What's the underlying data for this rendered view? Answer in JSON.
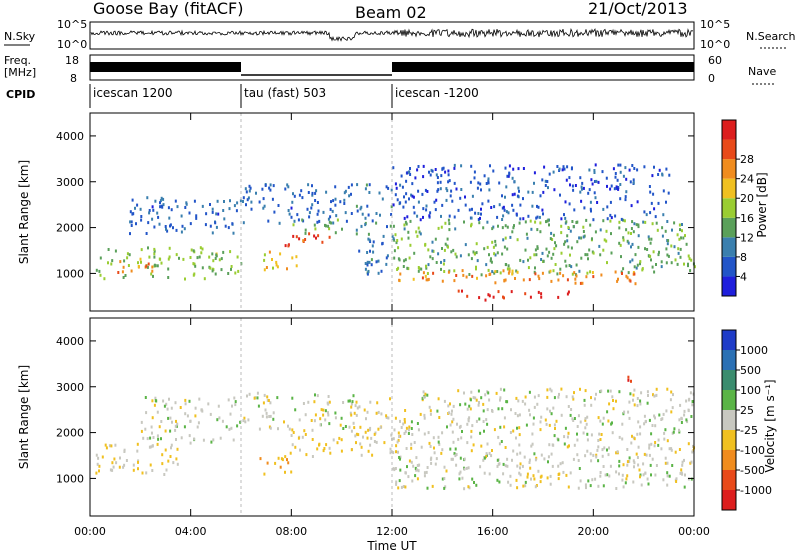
{
  "header": {
    "site": "Goose Bay (fitACF)",
    "beam": "Beam 02",
    "date": "21/Oct/2013"
  },
  "strips": {
    "nsky_label": "N.Sky",
    "nsky_ticks": [
      "10^5",
      "10^0"
    ],
    "nsearch_label": "N.Search",
    "nsearch_ticks": [
      "10^5",
      "10^0"
    ],
    "freq_label_1": "Freq.",
    "freq_label_2": "[MHz]",
    "freq_ticks": [
      "18",
      "8"
    ],
    "nave_label": "Nave",
    "nave_ticks": [
      "60",
      "0"
    ],
    "cpid_label": "CPID",
    "cpid_segments": [
      {
        "label": "icescan 1200",
        "start_h": 0,
        "end_h": 6
      },
      {
        "label": "tau (fast) 503",
        "start_h": 6,
        "end_h": 12
      },
      {
        "label": "icescan -1200",
        "start_h": 12,
        "end_h": 24
      }
    ]
  },
  "axes": {
    "xlabel": "Time UT",
    "xticks": [
      "00:00",
      "04:00",
      "08:00",
      "12:00",
      "16:00",
      "20:00",
      "00:00"
    ],
    "ylabel": "Slant Range [km]",
    "yticks": [
      "1000",
      "2000",
      "3000",
      "4000"
    ]
  },
  "colorbars": {
    "power": {
      "label": "Power [dB]",
      "ticks": [
        "4",
        "8",
        "12",
        "16",
        "20",
        "24",
        "28"
      ],
      "colors": [
        "#1f1fdc",
        "#2255c8",
        "#3a7fae",
        "#5aa05a",
        "#9acd32",
        "#f0c020",
        "#f08c1e",
        "#e84a1a",
        "#dc1e1e"
      ]
    },
    "velocity": {
      "label": "Velocity [m s⁻¹]",
      "ticks": [
        "1000",
        "500",
        "100",
        "25",
        "-25",
        "-100",
        "-500",
        "-1000"
      ],
      "colors": [
        "#1f3cc8",
        "#2a70b4",
        "#3a8c6e",
        "#5ab446",
        "#c8c8c0",
        "#f0c020",
        "#f08c1e",
        "#e84a1a",
        "#dc1e1e"
      ]
    }
  },
  "chart_data": [
    {
      "type": "heatmap",
      "name": "Power",
      "x_range_hours": [
        0,
        24
      ],
      "y_range_km": [
        180,
        4500
      ],
      "colorbar": "Power [dB]",
      "value_range": [
        0,
        30
      ],
      "regions": [
        {
          "t0": 0.2,
          "t1": 6.0,
          "r0": 900,
          "r1": 1600,
          "v": 14
        },
        {
          "t0": 0.8,
          "t1": 2.5,
          "r0": 1050,
          "r1": 1300,
          "v": 22
        },
        {
          "t0": 1.5,
          "t1": 6.0,
          "r0": 1900,
          "r1": 2700,
          "v": 6
        },
        {
          "t0": 6.0,
          "t1": 10.5,
          "r0": 2100,
          "r1": 3000,
          "v": 6
        },
        {
          "t0": 6.7,
          "t1": 8.2,
          "r0": 1100,
          "r1": 1500,
          "v": 18
        },
        {
          "t0": 7.7,
          "t1": 9.7,
          "r0": 1600,
          "r1": 1900,
          "v": 26
        },
        {
          "t0": 8.0,
          "t1": 10.0,
          "r0": 1900,
          "r1": 2200,
          "v": 12
        },
        {
          "t0": 10.5,
          "t1": 12.0,
          "r0": 1000,
          "r1": 3000,
          "v": 8
        },
        {
          "t0": 12.0,
          "t1": 24.0,
          "r0": 1000,
          "r1": 2200,
          "v": 12
        },
        {
          "t0": 12.0,
          "t1": 23.0,
          "r0": 2200,
          "r1": 3400,
          "v": 5
        },
        {
          "t0": 12.2,
          "t1": 22.0,
          "r0": 800,
          "r1": 1100,
          "v": 22
        },
        {
          "t0": 14.5,
          "t1": 19.0,
          "r0": 450,
          "r1": 650,
          "v": 28
        }
      ]
    },
    {
      "type": "heatmap",
      "name": "Velocity",
      "x_range_hours": [
        0,
        24
      ],
      "y_range_km": [
        180,
        4500
      ],
      "colorbar": "Velocity [m s⁻¹]",
      "value_range": [
        -1000,
        1000
      ],
      "regions": [
        {
          "t0": 0.2,
          "t1": 3.5,
          "r0": 1100,
          "r1": 1800,
          "v": -80
        },
        {
          "t0": 2.0,
          "t1": 6.0,
          "r0": 1800,
          "r1": 2800,
          "v": 0
        },
        {
          "t0": 6.0,
          "t1": 10.5,
          "r0": 2100,
          "r1": 2900,
          "v": 0
        },
        {
          "t0": 6.7,
          "t1": 8.0,
          "r0": 1100,
          "r1": 1500,
          "v": -300
        },
        {
          "t0": 7.7,
          "t1": 10.0,
          "r0": 1500,
          "r1": 2100,
          "v": -150
        },
        {
          "t0": 10.3,
          "t1": 12.5,
          "r0": 1500,
          "r1": 2800,
          "v": -120
        },
        {
          "t0": 12.0,
          "t1": 24.0,
          "r0": 800,
          "r1": 2300,
          "v": 0
        },
        {
          "t0": 13.0,
          "t1": 24.0,
          "r0": 2300,
          "r1": 3000,
          "v": 0
        },
        {
          "t0": 21.3,
          "t1": 22.0,
          "r0": 3000,
          "r1": 3300,
          "v": -700
        }
      ]
    }
  ]
}
